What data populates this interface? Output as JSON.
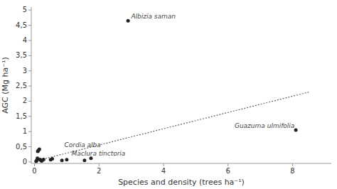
{
  "chart_data": {
    "type": "scatter",
    "xlabel": "Species and density (trees ha⁻¹)",
    "ylabel": "AGC (Mg ha⁻¹)",
    "series": [
      {
        "type": "scatter",
        "color": "#222222",
        "x": [
          0.05,
          0.07,
          0.09,
          0.1,
          0.12,
          0.15,
          0.17,
          0.2,
          0.22,
          0.25,
          0.28,
          0.5,
          0.55,
          0.85,
          1.0,
          1.55,
          1.75,
          2.9,
          8.1
        ],
        "values": [
          0.02,
          0.05,
          0.12,
          0.35,
          0.38,
          0.42,
          0.08,
          0.05,
          0.03,
          0.06,
          0.08,
          0.07,
          0.1,
          0.05,
          0.07,
          0.05,
          0.12,
          4.65,
          1.05
        ]
      },
      {
        "type": "line",
        "color": "#666666",
        "line_style": "dotted",
        "x": [
          0.0,
          8.5
        ],
        "values": [
          0.02,
          2.3
        ]
      }
    ],
    "annotations": [
      {
        "text": "Albizia saman",
        "x": 2.95,
        "y": 4.65
      },
      {
        "text": "Cordia alba",
        "x": 0.88,
        "y": 0.42
      },
      {
        "text": "Maclura tinctoria",
        "x": 1.1,
        "y": 0.13
      },
      {
        "text": "Guazuma ulmifolia",
        "x": 8.15,
        "y": 1.05
      }
    ],
    "xlim": [
      -0.1,
      9.2
    ],
    "ylim": [
      -0.05,
      5.1
    ],
    "xticks": [
      0,
      2,
      4,
      6,
      8
    ],
    "yticks": [
      0,
      {
        "value": 0.5,
        "label": "0,5"
      },
      1,
      {
        "value": 1.5,
        "label": "1,5"
      },
      2,
      {
        "value": 2.5,
        "label": "2,5"
      },
      3,
      {
        "value": 3.5,
        "label": "3,5"
      },
      4,
      {
        "value": 4.5,
        "label": "4,5"
      },
      5
    ]
  }
}
